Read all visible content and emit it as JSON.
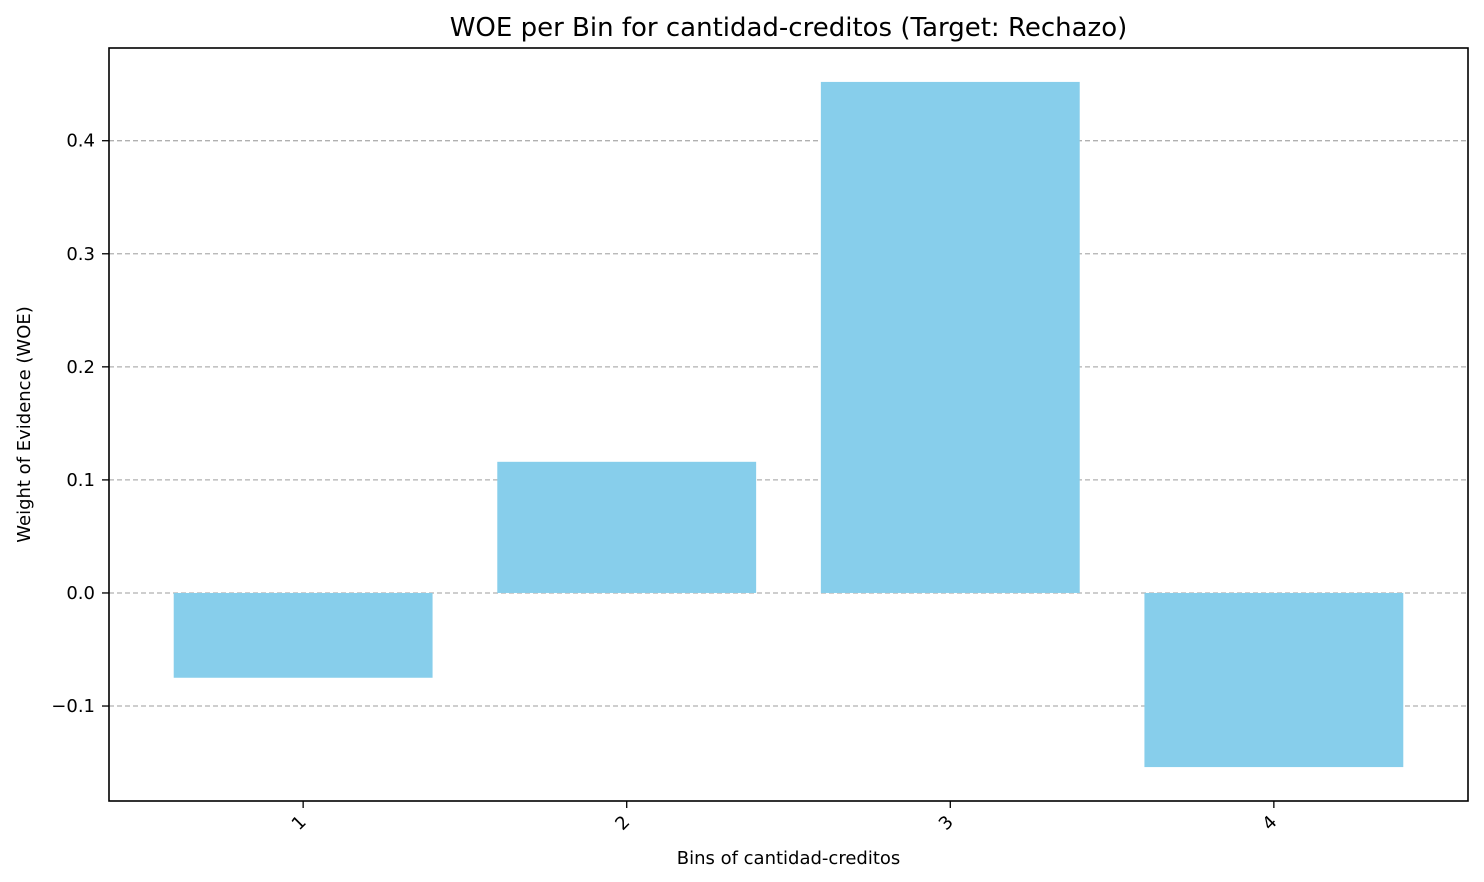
{
  "chart_data": {
    "type": "bar",
    "title": "WOE per Bin for cantidad-creditos (Target: Rechazo)",
    "xlabel": "Bins of cantidad-creditos",
    "ylabel": "Weight of Evidence (WOE)",
    "categories": [
      "1",
      "2",
      "3",
      "4"
    ],
    "values": [
      -0.075,
      0.116,
      0.452,
      -0.154
    ],
    "ylim": [
      -0.184,
      0.482
    ],
    "yticks": [
      -0.1,
      0.0,
      0.1,
      0.2,
      0.3,
      0.4
    ],
    "ytick_labels": [
      "−0.1",
      "0.0",
      "0.1",
      "0.2",
      "0.3",
      "0.4"
    ],
    "grid": "y-dashed",
    "bar_color": "#87ceeb",
    "grid_color": "#b0b0b0"
  }
}
